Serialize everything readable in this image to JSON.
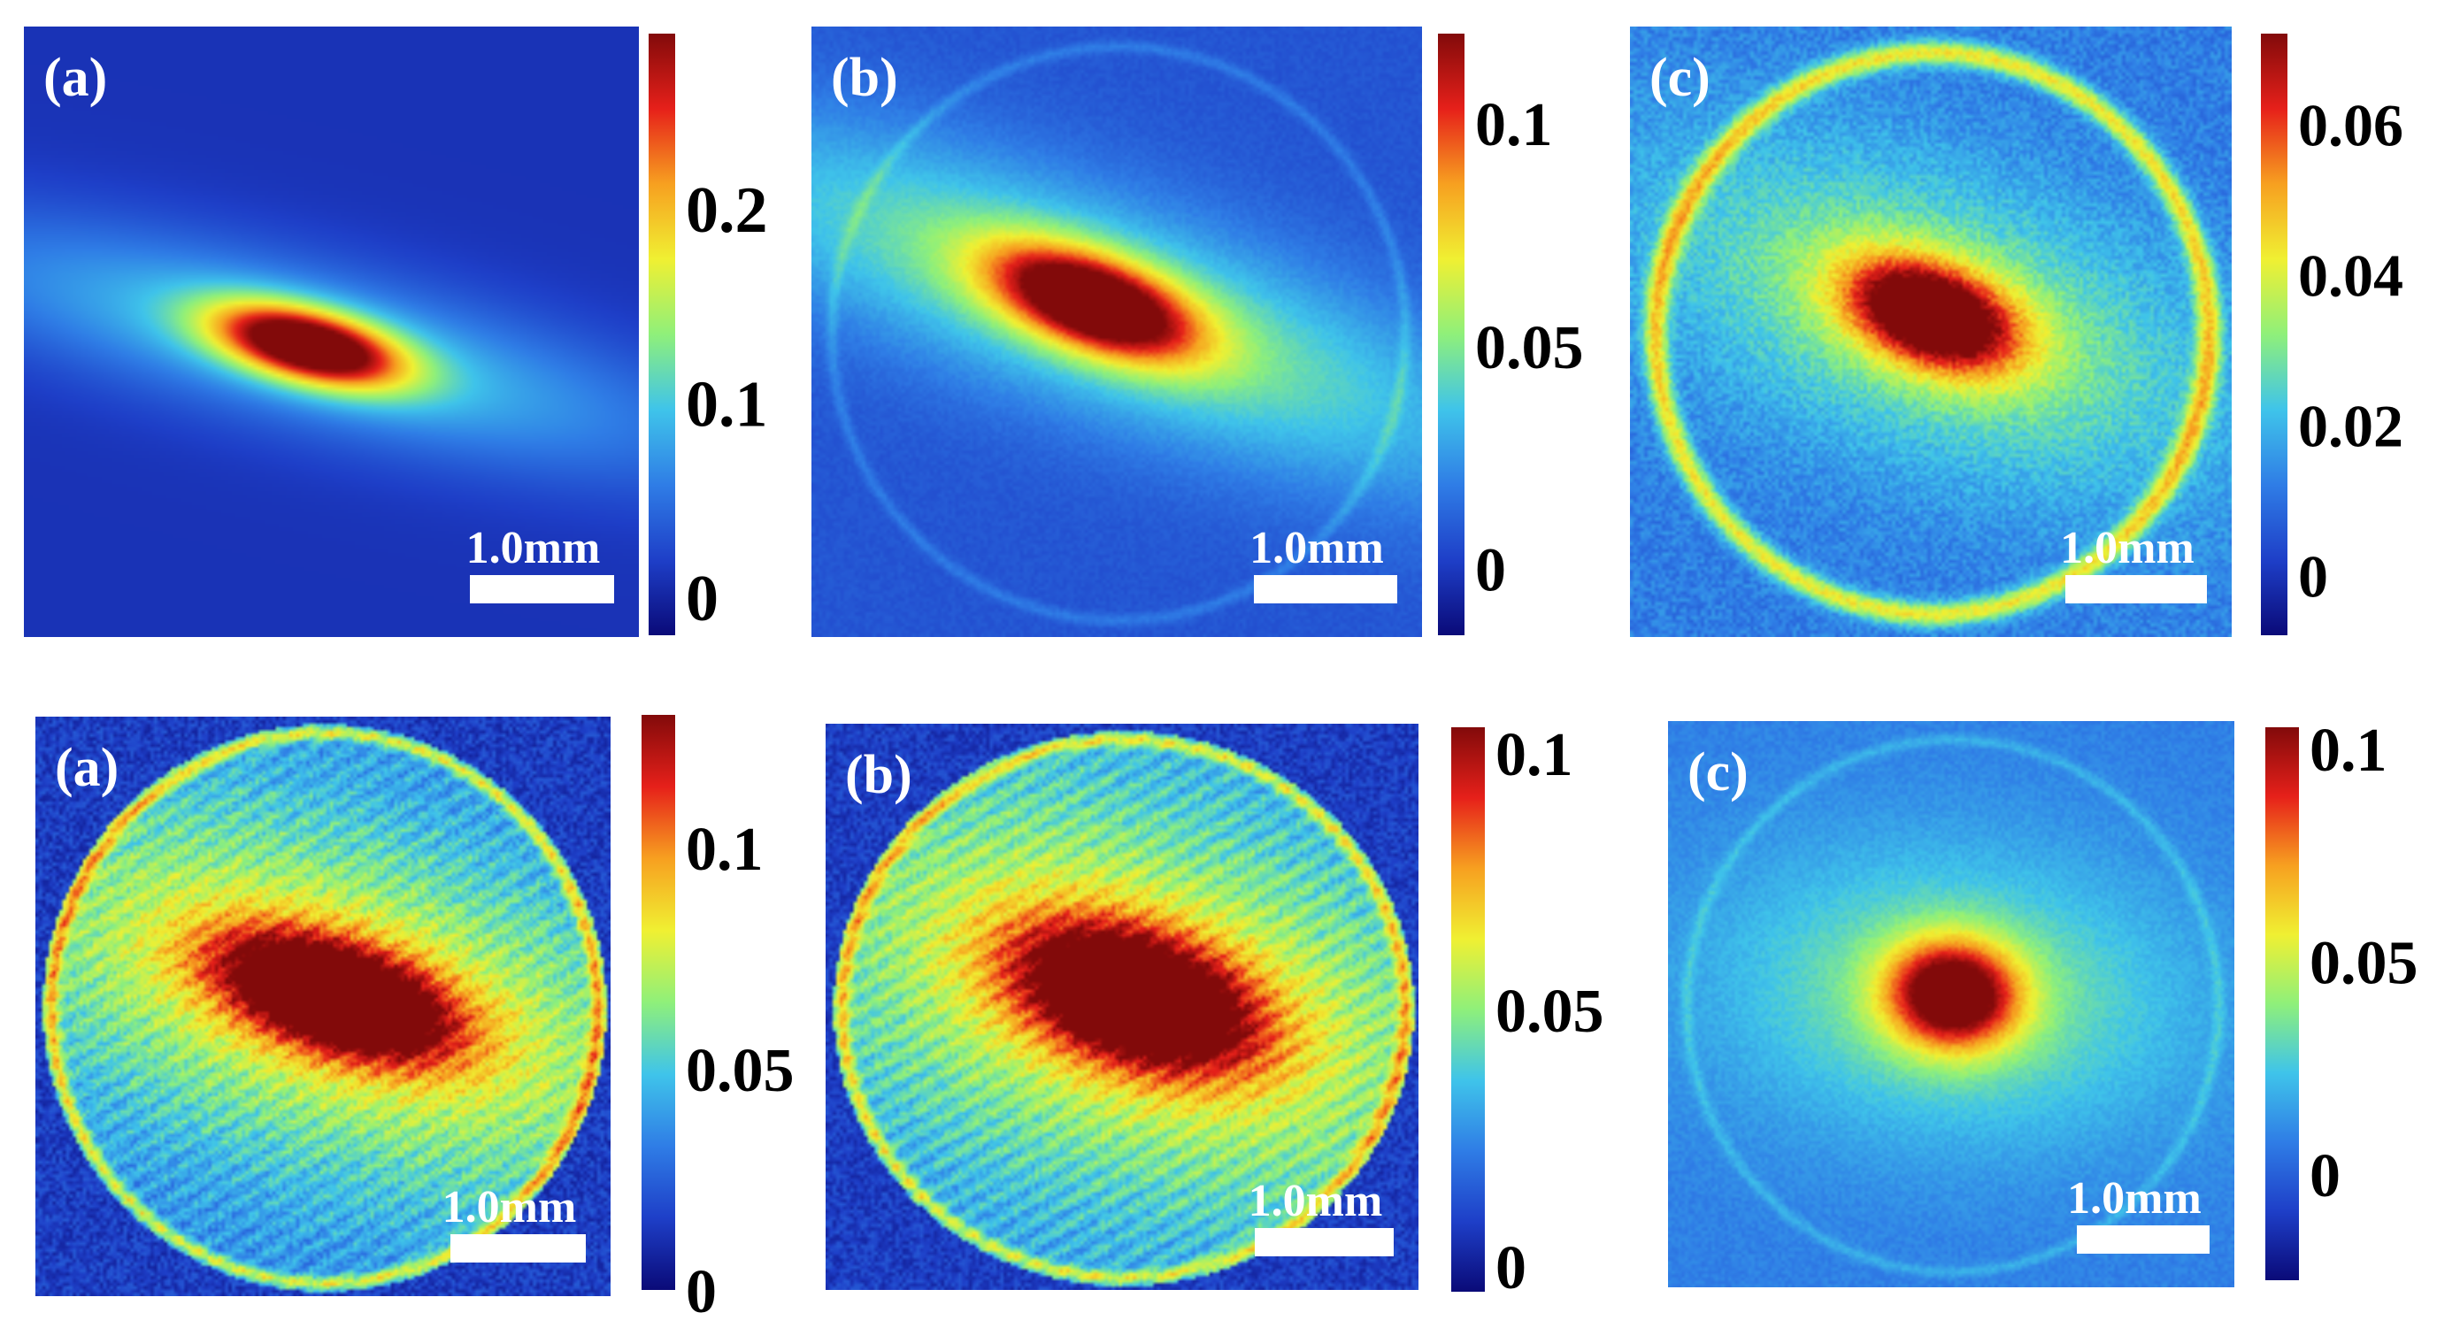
{
  "figure": {
    "colorscale": [
      "#0a0a78",
      "#1e3fc8",
      "#2f7de6",
      "#3fc4ea",
      "#8ff07a",
      "#f0f032",
      "#f7a020",
      "#e6201a",
      "#820a0a"
    ],
    "background_color": "#3a4fd0"
  },
  "chart_data": [
    {
      "type": "heatmap",
      "panel": "(a)",
      "row": 1,
      "scale_bar_label": "1.0mm",
      "colorbar": {
        "ticks": [
          "0",
          "0.1",
          "0.2"
        ],
        "tick_values": [
          0,
          0.1,
          0.2
        ],
        "range": [
          -0.02,
          0.29
        ]
      },
      "pattern": {
        "aperture": "faint",
        "center": [
          0.46,
          0.52
        ],
        "spot": [
          0.11,
          0.04
        ],
        "tilt_deg": 14,
        "peak": 0.28,
        "halo": [
          0.45,
          0.09
        ],
        "halo_level": 0.09,
        "bg": 0.01,
        "ring_level": 0.0,
        "speckle": 0.0
      }
    },
    {
      "type": "heatmap",
      "panel": "(b)",
      "row": 1,
      "scale_bar_label": "1.0mm",
      "colorbar": {
        "ticks": [
          "0",
          "0.05",
          "0.1"
        ],
        "tick_values": [
          0,
          0.05,
          0.1
        ],
        "range": [
          -0.015,
          0.12
        ]
      },
      "pattern": {
        "aperture": "faint",
        "center": [
          0.46,
          0.45
        ],
        "spot": [
          0.12,
          0.05
        ],
        "tilt_deg": 20,
        "peak": 0.115,
        "halo": [
          0.5,
          0.12
        ],
        "halo_level": 0.045,
        "bg": 0.008,
        "ring_level": 0.01,
        "speckle": 0.002
      }
    },
    {
      "type": "heatmap",
      "panel": "(c)",
      "row": 1,
      "scale_bar_label": "1.0mm",
      "colorbar": {
        "ticks": [
          "0",
          "0.02",
          "0.04",
          "0.06"
        ],
        "tick_values": [
          0,
          0.02,
          0.04,
          0.06
        ],
        "range": [
          -0.008,
          0.072
        ]
      },
      "pattern": {
        "aperture": "ring",
        "center": [
          0.5,
          0.47
        ],
        "spot": [
          0.1,
          0.055
        ],
        "tilt_deg": 20,
        "peak": 0.068,
        "halo": [
          0.35,
          0.16
        ],
        "halo_level": 0.022,
        "bg": 0.012,
        "ring_level": 0.03,
        "speckle": 0.004
      }
    },
    {
      "type": "heatmap",
      "panel": "(a)",
      "row": 2,
      "scale_bar_label": "1.0mm",
      "colorbar": {
        "ticks": [
          "0",
          "0.05",
          "0.1"
        ],
        "tick_values": [
          0,
          0.05,
          0.1
        ],
        "range": [
          0,
          0.13
        ]
      },
      "pattern": {
        "aperture": "disk",
        "center": [
          0.52,
          0.48
        ],
        "spot": [
          0.14,
          0.06
        ],
        "tilt_deg": 18,
        "peak": 0.125,
        "halo": [
          0.45,
          0.2
        ],
        "halo_level": 0.05,
        "bg": 0.035,
        "ring_level": 0.04,
        "speckle": 0.008
      }
    },
    {
      "type": "heatmap",
      "panel": "(b)",
      "row": 2,
      "scale_bar_label": "1.0mm",
      "colorbar": {
        "ticks": [
          "0",
          "0.05",
          "0.1"
        ],
        "tick_values": [
          0,
          0.05,
          0.1
        ],
        "range": [
          -0.005,
          0.105
        ]
      },
      "pattern": {
        "aperture": "disk",
        "center": [
          0.52,
          0.48
        ],
        "spot": [
          0.14,
          0.075
        ],
        "tilt_deg": 20,
        "peak": 0.1,
        "halo": [
          0.4,
          0.22
        ],
        "halo_level": 0.04,
        "bg": 0.028,
        "ring_level": 0.03,
        "speckle": 0.006
      }
    },
    {
      "type": "heatmap",
      "panel": "(c)",
      "row": 2,
      "scale_bar_label": "1.0mm",
      "colorbar": {
        "ticks": [
          "0",
          "0.05",
          "0.1"
        ],
        "tick_values": [
          0,
          0.05,
          0.1
        ],
        "range": [
          -0.025,
          0.105
        ]
      },
      "pattern": {
        "aperture": "faint",
        "center": [
          0.5,
          0.48
        ],
        "spot": [
          0.08,
          0.065
        ],
        "tilt_deg": 5,
        "peak": 0.1,
        "halo": [
          0.3,
          0.18
        ],
        "halo_level": 0.03,
        "bg": 0.008,
        "ring_level": 0.01,
        "speckle": 0.003
      }
    }
  ]
}
